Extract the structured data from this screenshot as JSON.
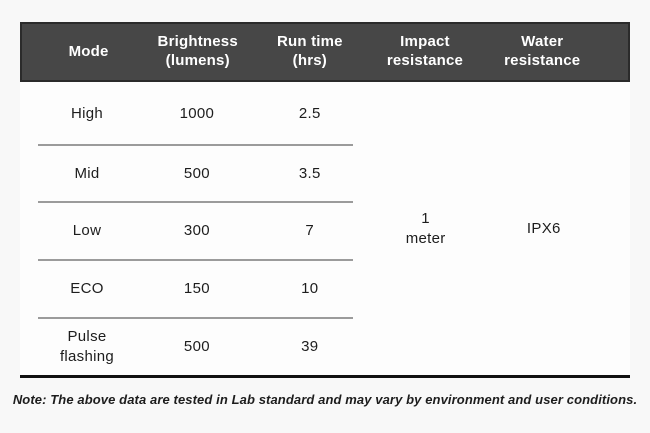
{
  "table": {
    "headers": [
      {
        "lines": [
          "Mode"
        ]
      },
      {
        "lines": [
          "Brightness",
          "(lumens)"
        ]
      },
      {
        "lines": [
          "Run time",
          "(hrs)"
        ]
      },
      {
        "lines": [
          "Impact",
          "resistance"
        ]
      },
      {
        "lines": [
          "Water",
          "resistance"
        ]
      }
    ],
    "rows": [
      {
        "mode": "High",
        "brightness": "1000",
        "run_time": "2.5"
      },
      {
        "mode": "Mid",
        "brightness": "500",
        "run_time": "3.5"
      },
      {
        "mode": "Low",
        "brightness": "300",
        "run_time": "7"
      },
      {
        "mode": "ECO",
        "brightness": "150",
        "run_time": "10"
      },
      {
        "mode": "Pulse flashing",
        "brightness": "500",
        "run_time": "39"
      }
    ],
    "impact_resistance": "1 meter",
    "water_resistance": "IPX6"
  },
  "note": "Note: The above data are tested in Lab standard and may vary by environment and user conditions.",
  "colors": {
    "header_bg": "#474747",
    "header_border": "#2b2b2b",
    "header_text": "#ffffff",
    "body_text": "#1d1d1d",
    "separator": "#9b9b9b",
    "bottom_rule": "#111111",
    "page_bg": "#f8f8f8"
  },
  "chart_data": {
    "type": "table",
    "columns": [
      "Mode",
      "Brightness (lumens)",
      "Run time (hrs)",
      "Impact resistance",
      "Water resistance"
    ],
    "rows": [
      [
        "High",
        1000,
        2.5,
        "1 meter",
        "IPX6"
      ],
      [
        "Mid",
        500,
        3.5,
        "1 meter",
        "IPX6"
      ],
      [
        "Low",
        300,
        7,
        "1 meter",
        "IPX6"
      ],
      [
        "ECO",
        150,
        10,
        "1 meter",
        "IPX6"
      ],
      [
        "Pulse flashing",
        500,
        39,
        "1 meter",
        "IPX6"
      ]
    ],
    "merged_cells": "Impact resistance value '1 meter' and Water resistance value 'IPX6' each span all five mode rows",
    "note": "Note: The above data are tested in Lab standard and may vary by environment and user conditions."
  }
}
